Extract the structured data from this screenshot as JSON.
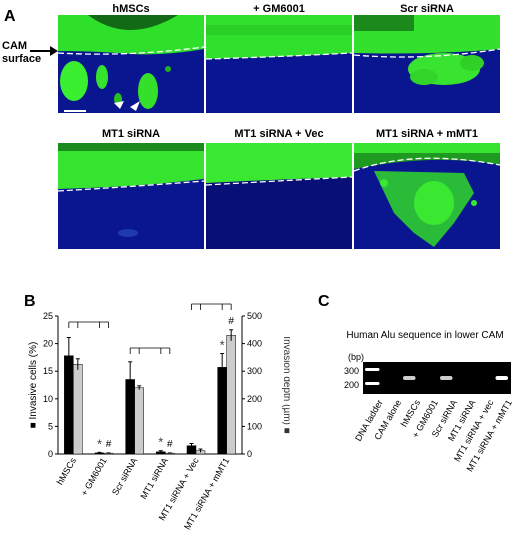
{
  "panel_a": {
    "label": "A",
    "cam_label_line1": "CAM",
    "cam_label_line2": "surface",
    "images": [
      {
        "title": "hMSCs"
      },
      {
        "title": "+ GM6001"
      },
      {
        "title": "Scr siRNA"
      },
      {
        "title": "MT1 siRNA"
      },
      {
        "title": "MT1 siRNA + Vec"
      },
      {
        "title": "MT1 siRNA + mMT1"
      }
    ]
  },
  "panel_b": {
    "label": "B",
    "chart_data": {
      "type": "bar",
      "categories": [
        "hMSCs",
        "+ GM6001",
        "Scr siRNA",
        "MT1 siRNA",
        "MT1 siRNA + Vec",
        "MT1 siRNA + mMT1"
      ],
      "series": [
        {
          "name": "Invasive cells (%)",
          "axis": "left",
          "color": "#000000",
          "values": [
            17.8,
            0.2,
            13.5,
            0.4,
            1.5,
            15.7
          ],
          "errors": [
            3.3,
            0.1,
            3.2,
            0.2,
            0.4,
            2.5
          ]
        },
        {
          "name": "Invasion depth (µm)",
          "axis": "right",
          "color": "#cccccc",
          "values": [
            325,
            3,
            240,
            3,
            12,
            430
          ],
          "errors": [
            20,
            1,
            7,
            1,
            6,
            20
          ]
        }
      ],
      "ylabel_left": "Invasive cells (%)",
      "ylabel_right": "Invasion depth (µm)",
      "ylim_left": [
        0,
        25
      ],
      "ylim_right": [
        0,
        500
      ],
      "yticks_left": [
        "0",
        "5",
        "10",
        "15",
        "20",
        "25"
      ],
      "yticks_right": [
        "0",
        "100",
        "200",
        "300",
        "400",
        "500"
      ],
      "annotations": [
        {
          "category": "+ GM6001",
          "symbols": [
            "*",
            "#"
          ]
        },
        {
          "category": "MT1 siRNA",
          "symbols": [
            "*",
            "#"
          ]
        },
        {
          "category": "MT1 siRNA + mMT1",
          "symbols": [
            "*",
            "#"
          ]
        }
      ]
    }
  },
  "panel_c": {
    "label": "C",
    "title": "Human Alu sequence in lower CAM",
    "unit": "(bp)",
    "size_markers": [
      "300",
      "200"
    ],
    "lanes": [
      "DNA ladder",
      "CAM alone",
      "hMSCs",
      "+ GM6001",
      "Scr siRNA",
      "MT1 siRNA",
      "MT1 siRNA + vec",
      "MT1 siRNA + mMT1"
    ],
    "band_intensity": [
      1,
      0,
      0.8,
      0,
      0.8,
      0,
      0,
      1
    ]
  }
}
